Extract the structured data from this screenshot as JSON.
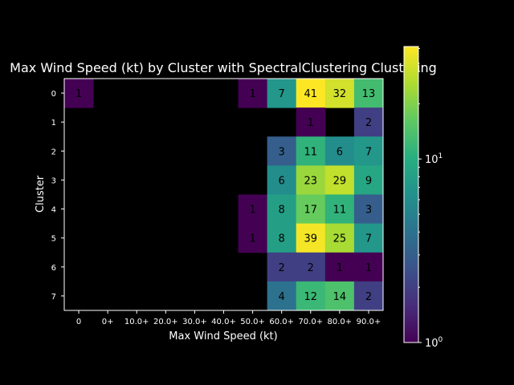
{
  "chart_data": {
    "type": "heatmap",
    "title": "Max Wind Speed (kt) by Cluster with SpectralClustering Clustering",
    "xlabel": "Max Wind Speed (kt)",
    "ylabel": "Cluster",
    "x_categories": [
      "0",
      "0+",
      "10.0+",
      "20.0+",
      "30.0+",
      "40.0+",
      "50.0+",
      "60.0+",
      "70.0+",
      "80.0+",
      "90.0+"
    ],
    "y_categories": [
      "0",
      "1",
      "2",
      "3",
      "4",
      "5",
      "6",
      "7"
    ],
    "values": [
      [
        1,
        null,
        null,
        null,
        null,
        null,
        1,
        7,
        41,
        32,
        13
      ],
      [
        null,
        null,
        null,
        null,
        null,
        null,
        null,
        null,
        1,
        null,
        2
      ],
      [
        null,
        null,
        null,
        null,
        null,
        null,
        null,
        3,
        11,
        6,
        7
      ],
      [
        null,
        null,
        null,
        null,
        null,
        null,
        null,
        6,
        23,
        29,
        9
      ],
      [
        null,
        null,
        null,
        null,
        null,
        null,
        1,
        8,
        17,
        11,
        3
      ],
      [
        null,
        null,
        null,
        null,
        null,
        null,
        1,
        8,
        39,
        25,
        7
      ],
      [
        null,
        null,
        null,
        null,
        null,
        null,
        null,
        2,
        2,
        1,
        1
      ],
      [
        null,
        null,
        null,
        null,
        null,
        null,
        null,
        4,
        12,
        14,
        2
      ]
    ],
    "colormap": "viridis",
    "color_scale": "log",
    "color_range": [
      1,
      41
    ],
    "colorbar_ticks": [
      {
        "value": 1,
        "base": "10",
        "exp": "0"
      },
      {
        "value": 10,
        "base": "10",
        "exp": "1"
      }
    ],
    "background_color": "#000000",
    "text_color": "#ffffff",
    "grid": false
  }
}
